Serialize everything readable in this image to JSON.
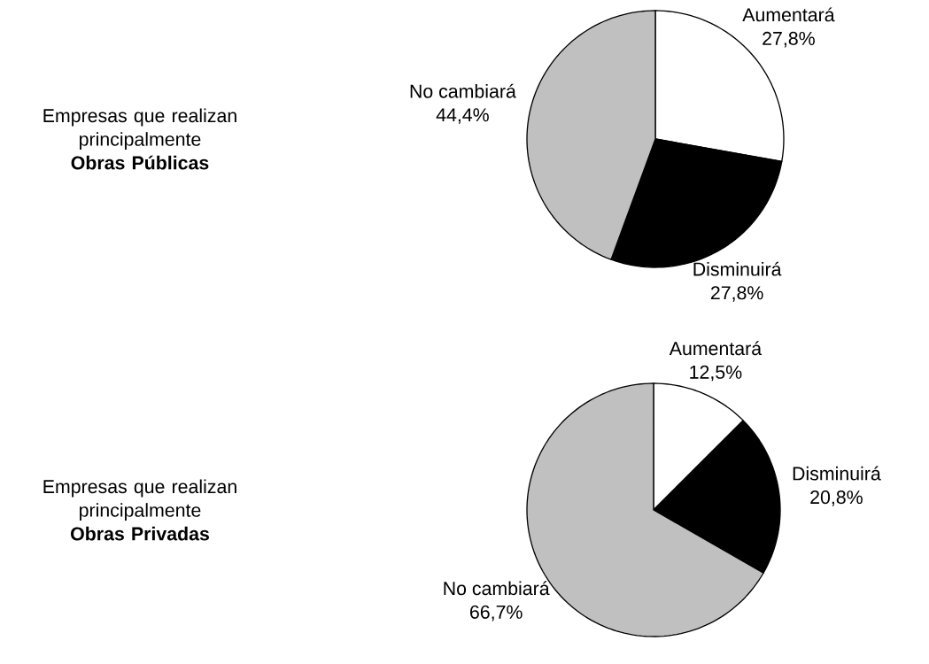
{
  "chart_data": [
    {
      "type": "pie",
      "title": "Empresas que realizan principalmente **Obras Públicas**",
      "categories": [
        "Aumentará",
        "Disminuirá",
        "No cambiará"
      ],
      "values": [
        27.8,
        27.8,
        44.4
      ],
      "colors": [
        "#ffffff",
        "#000000",
        "#c0c0c0"
      ],
      "value_labels": [
        "27,8%",
        "27,8%",
        "44,4%"
      ]
    },
    {
      "type": "pie",
      "title": "Empresas que realizan principalmente **Obras Privadas**",
      "categories": [
        "Aumentará",
        "Disminuirá",
        "No cambiará"
      ],
      "values": [
        12.5,
        20.8,
        66.7
      ],
      "colors": [
        "#ffffff",
        "#000000",
        "#c0c0c0"
      ],
      "value_labels": [
        "12,5%",
        "20,8%",
        "66,7%"
      ]
    }
  ]
}
